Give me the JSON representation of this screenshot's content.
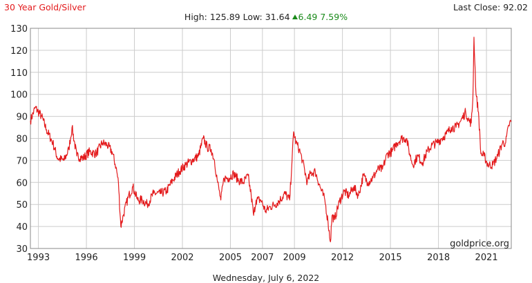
{
  "header": {
    "title": "30 Year Gold/Silver",
    "last_close_label": "Last Close:",
    "last_close_value": "92.02",
    "high_label": "High:",
    "high_value": "125.89",
    "low_label": "Low:",
    "low_value": "31.64",
    "change_value": "6.49",
    "change_percent": "7.59%"
  },
  "watermark": "goldprice.org",
  "footer_date": "Wednesday, July 6, 2022",
  "colors": {
    "series": "#e31a1c",
    "up": "#1a8a1a",
    "grid": "#cccccc",
    "axis": "#888888"
  },
  "chart_data": {
    "type": "line",
    "title": "30 Year Gold/Silver",
    "xlabel": "",
    "ylabel": "",
    "xlim": [
      1992.5,
      2022.55
    ],
    "ylim": [
      30,
      130
    ],
    "yticks": [
      30,
      40,
      50,
      60,
      70,
      80,
      90,
      100,
      110,
      120,
      130
    ],
    "xticks": [
      {
        "value": 1993,
        "label": "1993"
      },
      {
        "value": 1996,
        "label": "1996"
      },
      {
        "value": 1999,
        "label": "1999"
      },
      {
        "value": 2002,
        "label": "2002"
      },
      {
        "value": 2005,
        "label": "2005"
      },
      {
        "value": 2007,
        "label": "2007"
      },
      {
        "value": 2009,
        "label": "2009"
      },
      {
        "value": 2012,
        "label": "2012"
      },
      {
        "value": 2015,
        "label": "2015"
      },
      {
        "value": 2018,
        "label": "2018"
      },
      {
        "value": 2021,
        "label": "2021"
      }
    ],
    "grid": true,
    "series": [
      {
        "x": [
          1992.5,
          1992.8,
          1993.2,
          1993.5,
          1993.9,
          1994.2,
          1994.6,
          1994.9,
          1995.1,
          1995.4,
          1995.8,
          1996.2,
          1996.6,
          1997.0,
          1997.3,
          1997.6,
          1997.85,
          1998.0,
          1998.15,
          1998.3,
          1998.6,
          1998.9,
          1999.2,
          1999.5,
          1999.8,
          2000.2,
          2000.6,
          2001.0,
          2001.4,
          2001.8,
          2002.2,
          2002.6,
          2003.0,
          2003.3,
          2003.55,
          2003.8,
          2004.0,
          2004.2,
          2004.4,
          2004.6,
          2004.9,
          2005.2,
          2005.5,
          2005.8,
          2006.1,
          2006.3,
          2006.45,
          2006.6,
          2006.9,
          2007.2,
          2007.5,
          2007.8,
          2008.1,
          2008.4,
          2008.7,
          2008.85,
          2008.95,
          2009.1,
          2009.3,
          2009.5,
          2009.8,
          2010.0,
          2010.3,
          2010.6,
          2010.9,
          2011.1,
          2011.25,
          2011.35,
          2011.5,
          2011.8,
          2012.1,
          2012.4,
          2012.7,
          2013.0,
          2013.3,
          2013.6,
          2013.9,
          2014.2,
          2014.5,
          2014.8,
          2015.1,
          2015.4,
          2015.7,
          2016.0,
          2016.2,
          2016.4,
          2016.7,
          2017.0,
          2017.3,
          2017.6,
          2017.9,
          2018.2,
          2018.5,
          2018.8,
          2019.1,
          2019.4,
          2019.7,
          2019.9,
          2020.05,
          2020.15,
          2020.22,
          2020.35,
          2020.5,
          2020.65,
          2020.85,
          2021.1,
          2021.4,
          2021.7,
          2022.0,
          2022.2,
          2022.4,
          2022.55
        ],
        "y": [
          88,
          94,
          90,
          84,
          78,
          71,
          70,
          75,
          85,
          72,
          71,
          74,
          73,
          78,
          77,
          74,
          67,
          60,
          40,
          45,
          53,
          58,
          52,
          52,
          50,
          55,
          55,
          56,
          61,
          65,
          68,
          70,
          72,
          80,
          76,
          75,
          70,
          60,
          52,
          62,
          62,
          64,
          61,
          60,
          63,
          54,
          45,
          52,
          52,
          47,
          49,
          50,
          52,
          55,
          52,
          70,
          83,
          78,
          75,
          70,
          60,
          64,
          65,
          58,
          52,
          42,
          33,
          45,
          43,
          51,
          56,
          54,
          58,
          54,
          63,
          60,
          62,
          66,
          66,
          73,
          74,
          78,
          80,
          80,
          73,
          68,
          72,
          69,
          74,
          77,
          78,
          80,
          82,
          85,
          85,
          88,
          92,
          88,
          87,
          98,
          126,
          100,
          92,
          73,
          72,
          68,
          68,
          72,
          78,
          78,
          86,
          88
        ]
      }
    ]
  }
}
